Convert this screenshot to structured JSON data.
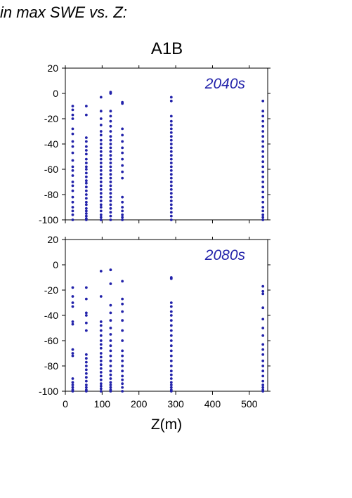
{
  "heading": "in max SWE vs. Z:",
  "chart_data": {
    "type": "scatter",
    "title": "A1B",
    "xlabel": "Z(m)",
    "ylabel": "",
    "xlim": [
      0,
      550
    ],
    "ylim": [
      -100,
      20
    ],
    "xticks": [
      "0",
      "100",
      "200",
      "300",
      "400",
      "500"
    ],
    "yticks": [
      "20",
      "0",
      "-20",
      "-40",
      "-60",
      "-80",
      "-100"
    ],
    "grid": false,
    "point_color": "#2222aa",
    "label_color": "#2222aa",
    "panels": [
      {
        "label": "2040s",
        "series": [
          {
            "x": 20,
            "y": [
              -10,
              -13,
              -17,
              -20,
              -28,
              -32,
              -38,
              -42,
              -47,
              -53,
              -58,
              -61,
              -65,
              -70,
              -73,
              -77,
              -82,
              -86,
              -90,
              -93,
              -96,
              -100
            ]
          },
          {
            "x": 57,
            "y": [
              -10,
              -17,
              -35,
              -38,
              -42,
              -45,
              -48,
              -52,
              -55,
              -58,
              -60,
              -63,
              -66,
              -69,
              -71,
              -74,
              -77,
              -80,
              -83,
              -86,
              -88,
              -91,
              -93,
              -95,
              -97,
              -99,
              -100
            ]
          },
          {
            "x": 97,
            "y": [
              -3,
              -14,
              -20,
              -25,
              -30,
              -33,
              -37,
              -40,
              -43,
              -46,
              -49,
              -52,
              -55,
              -58,
              -61,
              -64,
              -67,
              -70,
              -73,
              -76,
              -79,
              -82,
              -85,
              -88,
              -90,
              -93,
              -96,
              -98,
              -100
            ]
          },
          {
            "x": 123,
            "y": [
              0,
              1,
              -14,
              -18,
              -22,
              -26,
              -30,
              -34,
              -37,
              -40,
              -43,
              -46,
              -49,
              -52,
              -55,
              -58,
              -61,
              -64,
              -67,
              -70,
              -73,
              -76,
              -79,
              -82,
              -85,
              -88,
              -91,
              -94,
              -97,
              -100
            ]
          },
          {
            "x": 155,
            "y": [
              -7,
              -8,
              -28,
              -33,
              -38,
              -43,
              -47,
              -52,
              -57,
              -62,
              -67,
              -82,
              -86,
              -90,
              -93,
              -96,
              -98,
              -100
            ]
          },
          {
            "x": 288,
            "y": [
              -3,
              -6,
              -18,
              -22,
              -25,
              -28,
              -31,
              -34,
              -37,
              -40,
              -43,
              -46,
              -49,
              -52,
              -55,
              -58,
              -61,
              -64,
              -67,
              -70,
              -73,
              -76,
              -79,
              -82,
              -85,
              -88,
              -91,
              -94,
              -97,
              -100
            ]
          },
          {
            "x": 537,
            "y": [
              -6,
              -14,
              -18,
              -22,
              -26,
              -30,
              -34,
              -38,
              -42,
              -46,
              -50,
              -54,
              -58,
              -62,
              -66,
              -70,
              -74,
              -78,
              -82,
              -86,
              -90,
              -93,
              -96,
              -98,
              -100
            ]
          }
        ]
      },
      {
        "label": "2080s",
        "series": [
          {
            "x": 20,
            "y": [
              -18,
              -25,
              -30,
              -33,
              -45,
              -47,
              -67,
              -70,
              -72,
              -90,
              -93,
              -95,
              -97,
              -99,
              -100
            ]
          },
          {
            "x": 57,
            "y": [
              -18,
              -27,
              -38,
              -40,
              -46,
              -52,
              -71,
              -74,
              -77,
              -80,
              -83,
              -86,
              -89,
              -92,
              -95,
              -97,
              -99,
              -100
            ]
          },
          {
            "x": 97,
            "y": [
              -5,
              -25,
              -45,
              -48,
              -52,
              -56,
              -60,
              -63,
              -66,
              -70,
              -73,
              -76,
              -79,
              -82,
              -85,
              -88,
              -91,
              -94,
              -96,
              -98,
              -100
            ]
          },
          {
            "x": 123,
            "y": [
              -4,
              -15,
              -32,
              -38,
              -44,
              -50,
              -55,
              -60,
              -64,
              -68,
              -72,
              -76,
              -80,
              -84,
              -87,
              -90,
              -93,
              -95,
              -97,
              -99,
              -100
            ]
          },
          {
            "x": 155,
            "y": [
              -13,
              -27,
              -31,
              -37,
              -44,
              -52,
              -60,
              -68,
              -72,
              -76,
              -80,
              -84,
              -88,
              -91,
              -94,
              -97,
              -100
            ]
          },
          {
            "x": 288,
            "y": [
              -10,
              -11,
              -30,
              -33,
              -37,
              -40,
              -44,
              -48,
              -52,
              -56,
              -60,
              -64,
              -68,
              -72,
              -76,
              -80,
              -84,
              -87,
              -90,
              -93,
              -95,
              -97,
              -99,
              -100
            ]
          },
          {
            "x": 537,
            "y": [
              -17,
              -21,
              -23,
              -34,
              -43,
              -50,
              -56,
              -63,
              -67,
              -71,
              -76,
              -80,
              -84,
              -88,
              -92,
              -95,
              -97,
              -99,
              -100
            ]
          }
        ]
      }
    ]
  }
}
